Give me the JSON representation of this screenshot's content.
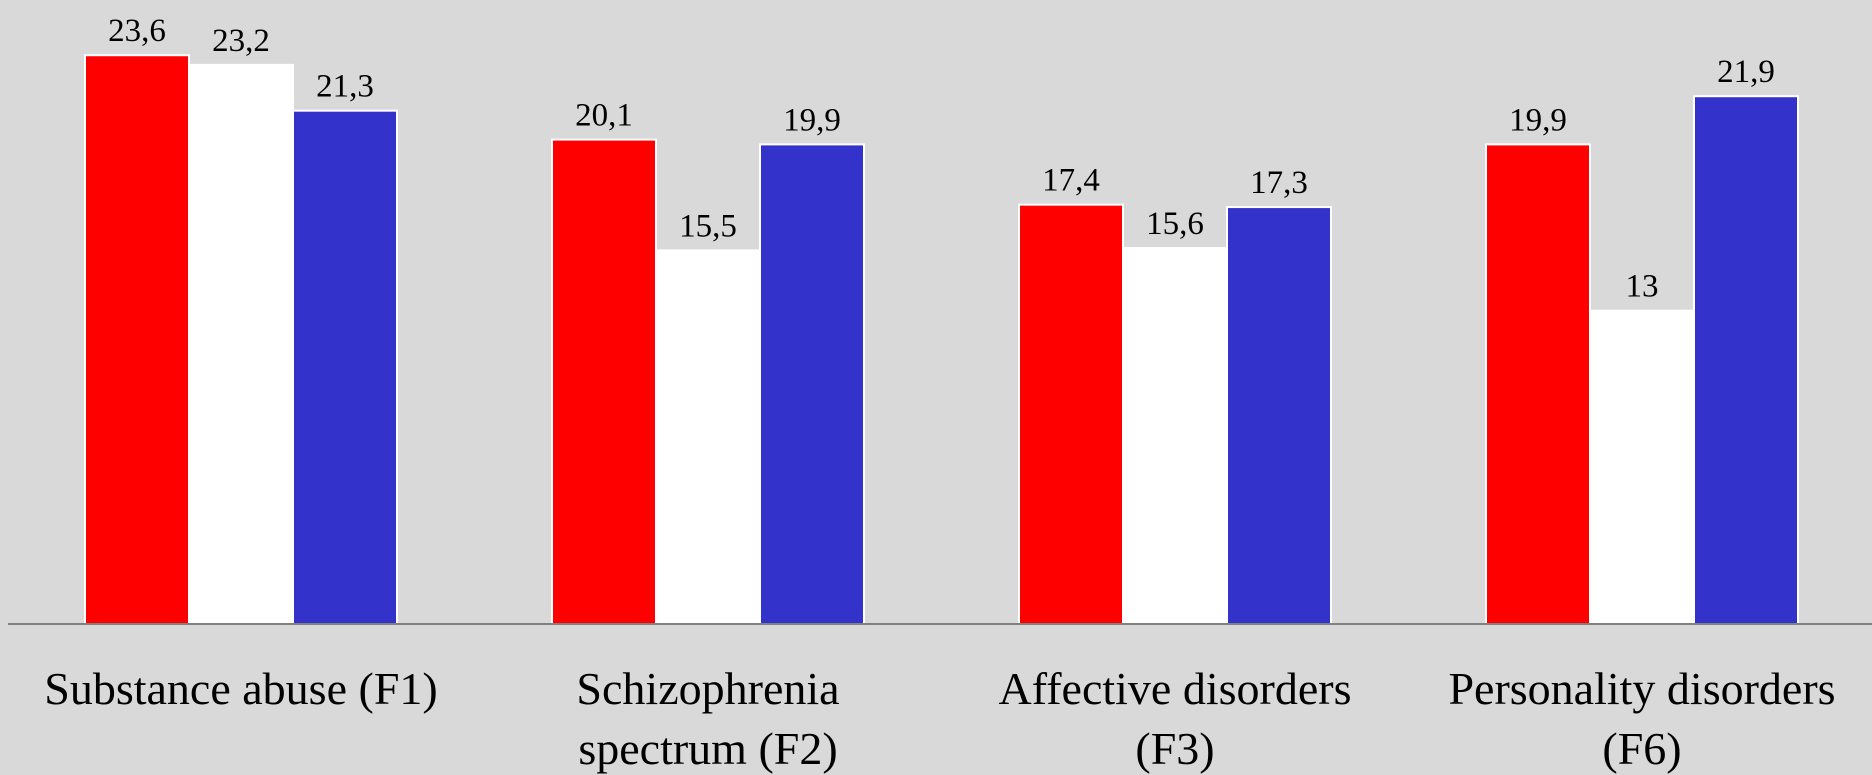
{
  "chart_data": {
    "type": "bar",
    "categories": [
      [
        "Substance abuse (F1)"
      ],
      [
        "Schizophrenia",
        "spectrum (F2)"
      ],
      [
        "Affective disorders",
        "(F3)"
      ],
      [
        "Personality disorders",
        "(F6)"
      ]
    ],
    "series": [
      {
        "values": [
          23.6,
          20.1,
          17.4,
          19.9
        ],
        "labels": [
          "23,6",
          "20,1",
          "17,4",
          "19,9"
        ],
        "color": "#ff0000"
      },
      {
        "values": [
          23.2,
          15.5,
          15.6,
          13.0
        ],
        "labels": [
          "23,2",
          "15,5",
          "15,6",
          "13"
        ],
        "color": "#ffffff"
      },
      {
        "values": [
          21.3,
          19.9,
          17.3,
          21.9
        ],
        "labels": [
          "21,3",
          "19,9",
          "17,3",
          "21,9"
        ],
        "color": "#3333cc"
      }
    ],
    "title": "",
    "xlabel": "",
    "ylabel": "",
    "ylim": [
      0,
      26
    ],
    "grid": false,
    "legend": "none",
    "background": "#d9d9d9",
    "axis_color": "#808080"
  }
}
